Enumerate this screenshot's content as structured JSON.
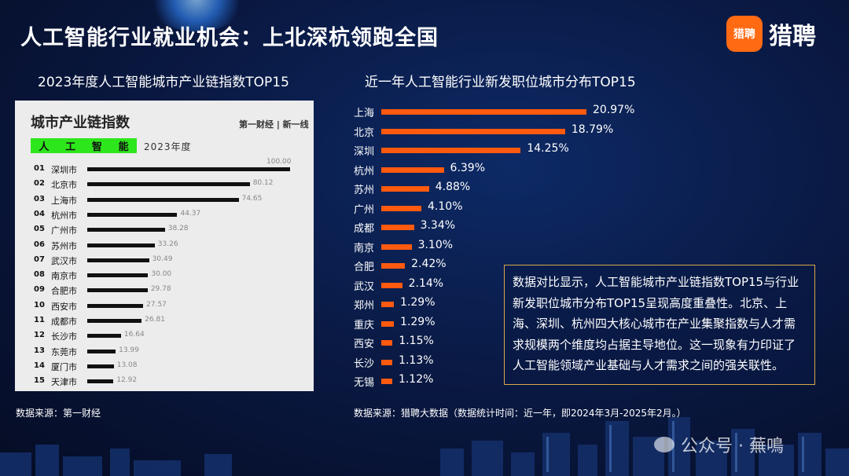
{
  "header": {
    "title": "人工智能行业就业机会：上北深杭领跑全国",
    "logo_icon_text": "猎聘",
    "logo_text": "猎聘"
  },
  "left": {
    "subtitle": "2023年度人工智能城市产业链指数TOP15",
    "panel_title": "城市产业链指数",
    "panel_brand": "第一财经 | 新一线",
    "tag_chars": [
      "人",
      "工",
      "智",
      "能"
    ],
    "year": "2023年度",
    "source": "数据来源：第一财经"
  },
  "right": {
    "subtitle": "近一年人工智能行业新发职位城市分布TOP15",
    "note": "数据对比显示，人工智能城市产业链指数TOP15与行业新发职位城市分布TOP15呈现高度重叠性。北京、上海、深圳、杭州四大核心城市在产业集聚指数与人才需求规模两个维度均占据主导地位。这一现象有力印证了人工智能领域产业基础与人才需求之间的强关联性。",
    "source": "数据来源：猎聘大数据（数据统计时间：近一年，即2024年3月-2025年2月。）"
  },
  "watermark": "公众号 · 蕪鳴",
  "colors": {
    "accent_orange": "#ff5a0f",
    "green_tag": "#2ee61c",
    "note_border": "#d8a94a"
  },
  "chart_data": [
    {
      "type": "bar",
      "orientation": "horizontal",
      "title": "城市产业链指数",
      "ranks": [
        "01",
        "02",
        "03",
        "04",
        "05",
        "06",
        "07",
        "08",
        "09",
        "10",
        "11",
        "12",
        "13",
        "14",
        "15"
      ],
      "categories": [
        "深圳市",
        "北京市",
        "上海市",
        "杭州市",
        "广州市",
        "苏州市",
        "武汉市",
        "南京市",
        "合肥市",
        "西安市",
        "成都市",
        "长沙市",
        "东莞市",
        "厦门市",
        "天津市"
      ],
      "values": [
        100.0,
        80.12,
        74.65,
        44.37,
        38.28,
        33.26,
        30.49,
        30.0,
        29.78,
        27.57,
        26.81,
        16.64,
        13.99,
        13.08,
        12.92
      ],
      "labels": [
        "100.00",
        "80.12",
        "74.65",
        "44.37",
        "38.28",
        "33.26",
        "30.49",
        "30.00",
        "29.78",
        "27.57",
        "26.81",
        "16.64",
        "13.99",
        "13.08",
        "12.92"
      ],
      "xlim": [
        0,
        100
      ]
    },
    {
      "type": "bar",
      "orientation": "horizontal",
      "categories": [
        "上海",
        "北京",
        "深圳",
        "杭州",
        "苏州",
        "广州",
        "成都",
        "南京",
        "合肥",
        "武汉",
        "郑州",
        "重庆",
        "西安",
        "长沙",
        "无锡"
      ],
      "values": [
        20.97,
        18.79,
        14.25,
        6.39,
        4.88,
        4.1,
        3.34,
        3.1,
        2.42,
        2.14,
        1.29,
        1.29,
        1.15,
        1.13,
        1.12
      ],
      "labels": [
        "20.97%",
        "18.79%",
        "14.25%",
        "6.39%",
        "4.88%",
        "4.10%",
        "3.34%",
        "3.10%",
        "2.42%",
        "2.14%",
        "1.29%",
        "1.29%",
        "1.15%",
        "1.13%",
        "1.12%"
      ],
      "unit": "%"
    }
  ]
}
